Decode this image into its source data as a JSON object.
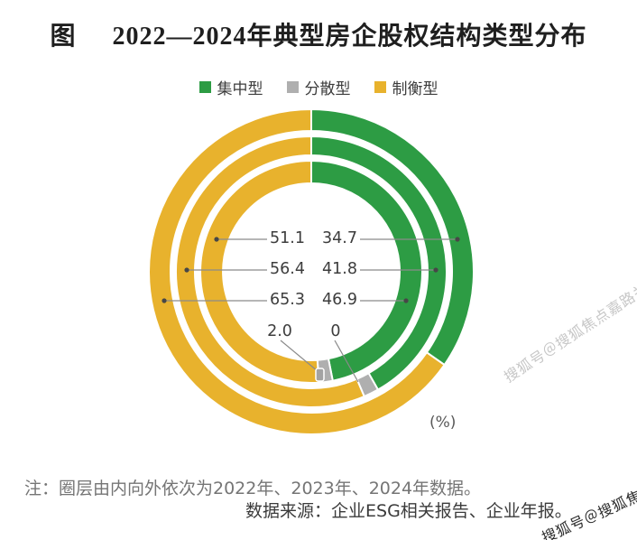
{
  "title": {
    "figure_word": "图",
    "text": "2022—2024年典型房企股权结构类型分布"
  },
  "legend": [
    {
      "label": "集中型",
      "color": "#2D9C44"
    },
    {
      "label": "分散型",
      "color": "#AFAFAF"
    },
    {
      "label": "制衡型",
      "color": "#E8B22D"
    }
  ],
  "chart_data": {
    "type": "pie",
    "subtype": "concentric_donut_3_rings",
    "title": "2022—2024年典型房企股权结构类型分布",
    "categories": [
      "2022",
      "2023",
      "2024"
    ],
    "ring_order": "inner_to_outer = 2022, 2023, 2024",
    "direction": "clockwise",
    "start_angle_deg": 0,
    "series": [
      {
        "name": "集中型",
        "color": "#2D9C44",
        "values": [
          46.9,
          41.8,
          34.7
        ]
      },
      {
        "name": "分散型",
        "color": "#AFAFAF",
        "values": [
          2.0,
          1.8,
          0
        ]
      },
      {
        "name": "制衡型",
        "color": "#E8B22D",
        "values": [
          51.1,
          56.4,
          65.3
        ]
      }
    ],
    "series_note": "分散型 2023 value is shown only as an unlabeled sliver (≈1.8 by subtraction); labeled values are 2.0 (2022) and 0 (2024).",
    "unit": "(%)",
    "value_labels": {
      "left": [
        "51.1",
        "56.4",
        "65.3",
        "2.0"
      ],
      "right": [
        "34.7",
        "41.8",
        "46.9",
        "0"
      ]
    },
    "legend_position": "top"
  },
  "note": "注：圈层由内向外依次为2022年、2023年、2024年数据。",
  "source": "数据来源：企业ESG相关报告、企业年报。",
  "watermarks": {
    "diagonal": "搜狐号＠搜狐焦点嘉路关站",
    "corner": "搜狐号＠搜狐焦点嘉路关站"
  }
}
